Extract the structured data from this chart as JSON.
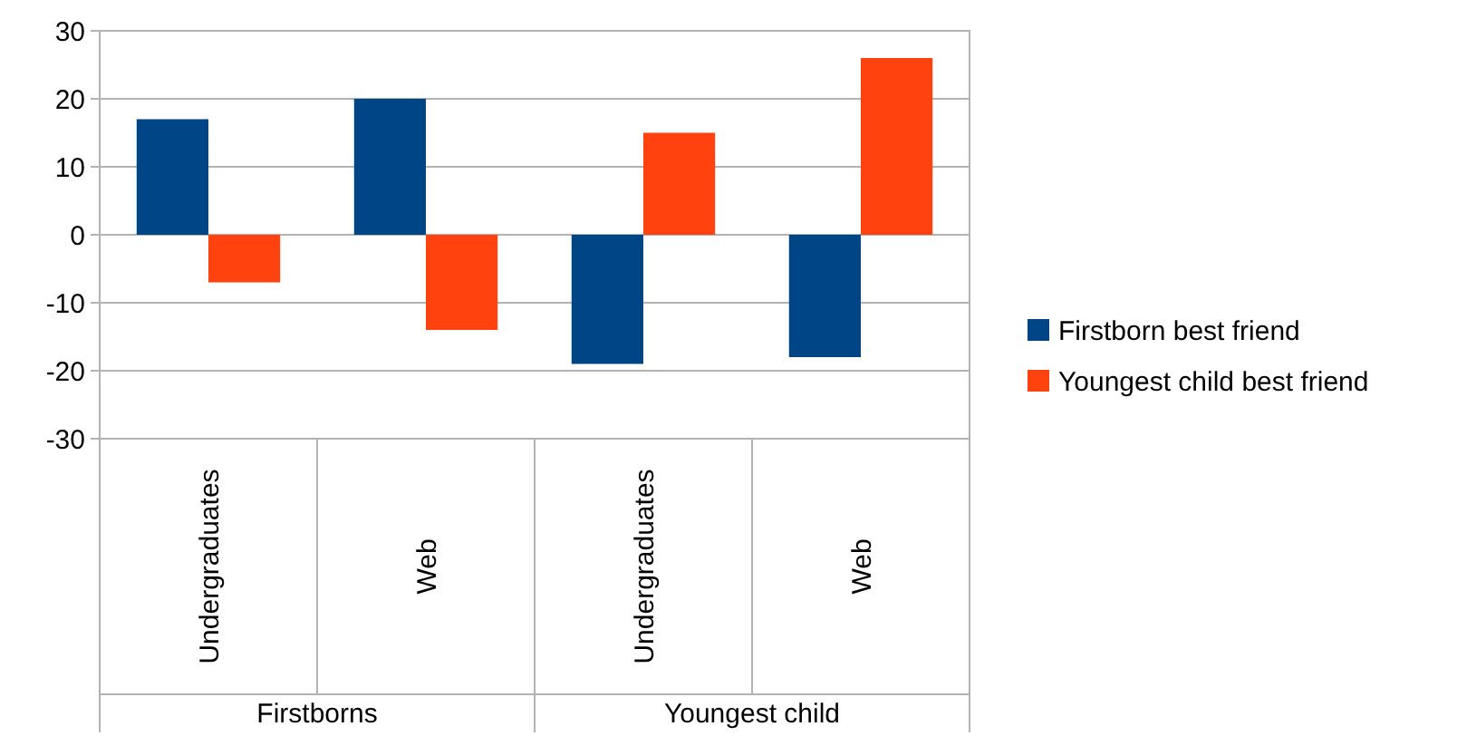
{
  "chart_data": {
    "type": "bar",
    "categories": [
      "Undergraduates",
      "Web",
      "Undergraduates",
      "Web"
    ],
    "series": [
      {
        "name": "Firstborn best friend",
        "color": "#004586",
        "values": [
          17,
          20,
          -19,
          -18
        ]
      },
      {
        "name": "Youngest child best friend",
        "color": "#ff420e",
        "values": [
          -7,
          -14,
          15,
          26
        ]
      }
    ],
    "ylim": [
      -30,
      30
    ],
    "yticks": [
      -30,
      -20,
      -10,
      0,
      10,
      20,
      30
    ],
    "grid": "y",
    "legend": "right",
    "annotations": [
      "Firstborns",
      "Youngest child"
    ]
  }
}
